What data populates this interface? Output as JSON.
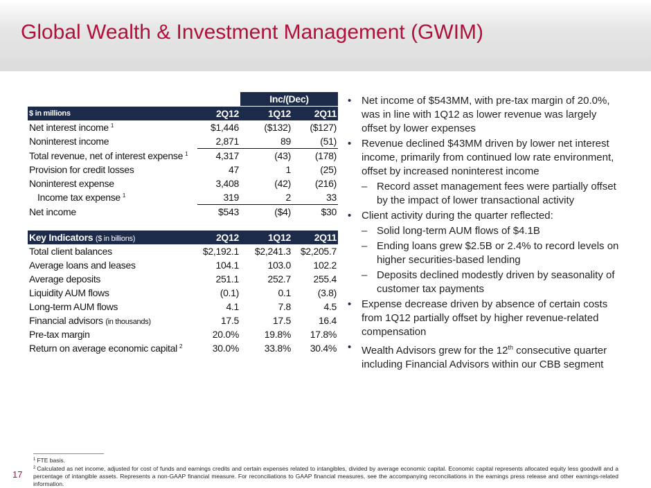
{
  "title": "Global Wealth & Investment Management (GWIM)",
  "income_table": {
    "group_header": "Inc/(Dec)",
    "header": [
      "$ in millions",
      "2Q12",
      "1Q12",
      "2Q11"
    ],
    "rows": [
      {
        "label": "Net interest income",
        "note": "1",
        "values": [
          "$1,446",
          "($132)",
          "($127)"
        ]
      },
      {
        "label": "Noninterest income",
        "values": [
          "2,871",
          "89",
          "(51)"
        ],
        "underlined": true
      },
      {
        "label": "Total revenue, net of interest expense",
        "note": "1",
        "values": [
          "4,317",
          "(43)",
          "(178)"
        ]
      },
      {
        "label": "Provision for credit losses",
        "values": [
          "47",
          "1",
          "(25)"
        ]
      },
      {
        "label": "Noninterest expense",
        "values": [
          "3,408",
          "(42)",
          "(216)"
        ]
      },
      {
        "label": "Income tax expense",
        "note": "1",
        "values": [
          "319",
          "2",
          "33"
        ],
        "underlined": true,
        "indent": true
      },
      {
        "label": "Net income",
        "values": [
          "$543",
          "($4)",
          "$30"
        ]
      }
    ]
  },
  "indicators_table": {
    "header": {
      "label": "Key Indicators",
      "unit": "($ in billions)",
      "columns": [
        "2Q12",
        "1Q12",
        "2Q11"
      ]
    },
    "rows": [
      {
        "label": "Total client balances",
        "values": [
          "$2,192.1",
          "$2,241.3",
          "$2,205.7"
        ]
      },
      {
        "label": "Average loans and leases",
        "values": [
          "104.1",
          "103.0",
          "102.2"
        ]
      },
      {
        "label": "Average deposits",
        "values": [
          "251.1",
          "252.7",
          "255.4"
        ]
      },
      {
        "label": "Liquidity AUM flows",
        "values": [
          "(0.1)",
          "0.1",
          "(3.8)"
        ]
      },
      {
        "label": "Long-term AUM flows",
        "values": [
          "4.1",
          "7.8",
          "4.5"
        ]
      },
      {
        "label": "Financial advisors",
        "unit": "(in thousands)",
        "values": [
          "17.5",
          "17.5",
          "16.4"
        ]
      },
      {
        "label": "Pre-tax margin",
        "values": [
          "20.0%",
          "19.8%",
          "17.8%"
        ]
      },
      {
        "label": "Return on average economic capital",
        "note": "2",
        "values": [
          "30.0%",
          "33.8%",
          "30.4%"
        ]
      }
    ]
  },
  "bullets": [
    {
      "level": 1,
      "text": "Net income of $543MM, with pre-tax margin of 20.0%, was in line with 1Q12 as lower revenue was largely offset by lower expenses"
    },
    {
      "level": 1,
      "text": "Revenue declined $43MM driven by lower net interest income, primarily from continued low rate environment, offset by increased noninterest income"
    },
    {
      "level": 2,
      "text": "Record asset management fees were partially offset by the impact of lower transactional activity"
    },
    {
      "level": 1,
      "text": "Client activity during the quarter reflected:"
    },
    {
      "level": 2,
      "text": "Solid long-term AUM flows of $4.1B"
    },
    {
      "level": 2,
      "text": "Ending loans grew $2.5B or 2.4% to record levels on higher securities-based lending"
    },
    {
      "level": 2,
      "text": "Deposits declined modestly driven by seasonality of customer tax payments"
    },
    {
      "level": 1,
      "text": "Expense decrease driven by absence of certain costs from 1Q12 partially offset by higher revenue-related compensation"
    },
    {
      "level": 1,
      "text": "Wealth Advisors grew for the 12",
      "sup": "th",
      "text_after": " consecutive quarter including Financial Advisors within our CBB segment"
    }
  ],
  "footnotes": [
    {
      "mark": "1",
      "text": "FTE basis."
    },
    {
      "mark": "2",
      "text": "Calculated as net income, adjusted for cost of funds and earnings credits and certain expenses related to intangibles, divided by average economic capital. Economic capital represents allocated equity less goodwill and a percentage of intangible assets. Represents a non-GAAP financial measure. For reconciliations to GAAP financial measures, see the accompanying reconciliations in the earnings press release and other earnings-related information."
    }
  ],
  "page_number": "17"
}
